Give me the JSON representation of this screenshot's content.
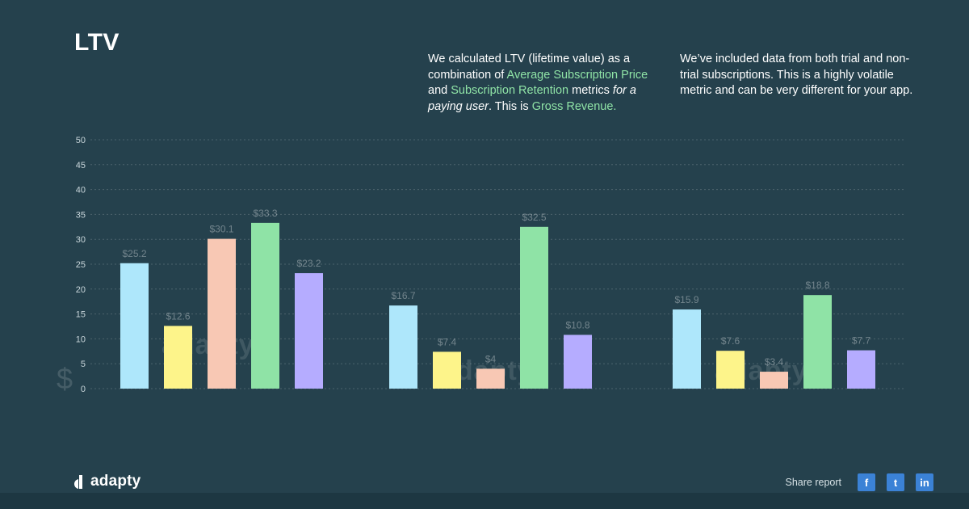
{
  "page": {
    "title": "LTV",
    "desc1": {
      "t1": "We calculated LTV (lifetime value) as a combination of ",
      "h1": "Average Subscription Price",
      "t2": " and ",
      "h2": "Subscription Retention",
      "t3": " metrics ",
      "i1": "for a paying user",
      "t4": ". This is ",
      "h3": "Gross Revenue."
    },
    "desc2": "We’ve included data from both trial and non-trial subscriptions. This is a highly volatile metric and can be very different for your app.",
    "share_label": "Share report",
    "logo_text": "adapty",
    "watermark": "adapty",
    "currency_symbol": "$",
    "social": [
      "f",
      "t",
      "in"
    ],
    "social_icons": [
      "facebook-icon",
      "twitter-icon",
      "linkedin-icon"
    ],
    "accent": "#8fe3a6",
    "social_color": "#3b82d6"
  },
  "chart_data": {
    "type": "bar",
    "ylim": [
      0,
      50
    ],
    "yticks": [
      0,
      5,
      10,
      15,
      20,
      25,
      30,
      35,
      40,
      45,
      50
    ],
    "grid": true,
    "groups": [
      {
        "values": [
          25.2,
          12.6,
          30.1,
          33.3,
          23.2
        ],
        "labels": [
          "$25.2",
          "$12.6",
          "$30.1",
          "$33.3",
          "$23.2"
        ]
      },
      {
        "values": [
          16.7,
          7.4,
          4.0,
          32.5,
          10.8
        ],
        "labels": [
          "$16.7",
          "$7.4",
          "$4",
          "$32.5",
          "$10.8"
        ]
      },
      {
        "values": [
          15.9,
          7.6,
          3.4,
          18.8,
          7.7
        ],
        "labels": [
          "$15.9",
          "$7.6",
          "$3.4",
          "$18.8",
          "$7.7"
        ]
      }
    ],
    "series_colors": [
      "#aee7fb",
      "#fdf48a",
      "#f8c8b4",
      "#8fe3a6",
      "#b5acff"
    ]
  }
}
